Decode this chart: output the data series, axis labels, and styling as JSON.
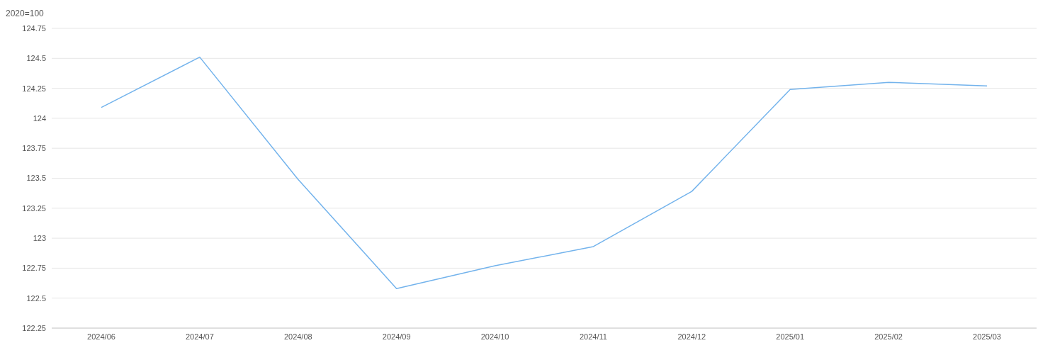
{
  "chart_data": {
    "type": "line",
    "ylabel": "2020=100",
    "categories": [
      "2024/06",
      "2024/07",
      "2024/08",
      "2024/09",
      "2024/10",
      "2024/11",
      "2024/12",
      "2025/01",
      "2025/02",
      "2025/03"
    ],
    "series": [
      {
        "color": "#73b3ec",
        "values": [
          124.09,
          124.51,
          123.49,
          122.58,
          122.77,
          122.93,
          123.39,
          124.24,
          124.3,
          124.27
        ]
      }
    ],
    "ylim": [
      122.25,
      124.75
    ],
    "yticks": [
      122.25,
      122.5,
      122.75,
      123,
      123.25,
      123.5,
      123.75,
      124,
      124.25,
      124.5,
      124.75
    ],
    "grid": "y",
    "legend": false,
    "marker": "none",
    "line_style": "solid"
  }
}
